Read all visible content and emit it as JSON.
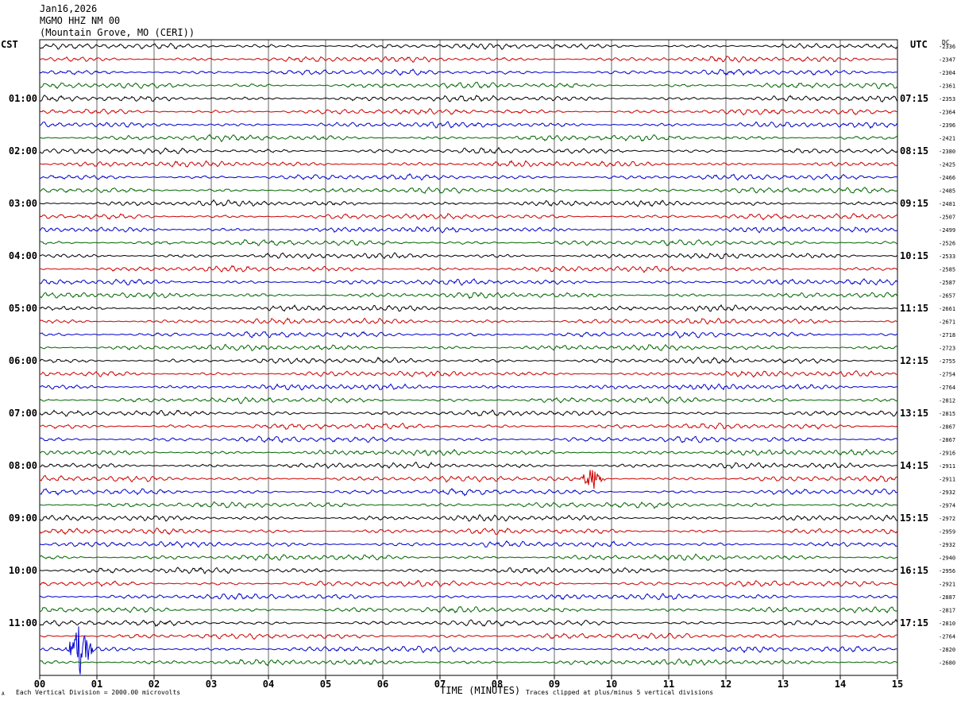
{
  "header": {
    "date": "Jan16,2026",
    "station": "MGMO HHZ NM 00",
    "location": "(Mountain Grove, MO (CERI))"
  },
  "left_timezone": "CST",
  "right_timezone": "UTC",
  "dc_label": "DC",
  "footer": {
    "scale": "Each Vertical Division = 2000.00 microvolts",
    "x_title": "TIME (MINUTES)",
    "clip_note": "Traces clipped at plus/minus 5 vertical divisions",
    "corner_mark": "A"
  },
  "colors": {
    "trace_cycle": [
      "#000000",
      "#cc0000",
      "#0000cc",
      "#006600"
    ],
    "grid": "#000000"
  },
  "chart_data": {
    "type": "line",
    "title": "",
    "xlabel": "TIME (MINUTES)",
    "ylabel": "",
    "xlim": [
      0,
      15
    ],
    "x_ticks": [
      "00",
      "01",
      "02",
      "03",
      "04",
      "05",
      "06",
      "07",
      "08",
      "09",
      "10",
      "11",
      "12",
      "13",
      "14",
      "15"
    ],
    "left_hour_labels": [
      "01:00",
      "02:00",
      "03:00",
      "04:00",
      "05:00",
      "06:00",
      "07:00",
      "08:00",
      "09:00",
      "10:00",
      "11:00"
    ],
    "right_hour_labels": [
      "07:15",
      "08:15",
      "09:15",
      "10:15",
      "11:15",
      "12:15",
      "13:15",
      "14:15",
      "15:15",
      "16:15",
      "17:15"
    ],
    "dc_offsets": [
      "-2336",
      "-2347",
      "-2304",
      "-2361",
      "-2353",
      "-2364",
      "-2396",
      "-2421",
      "-2380",
      "-2425",
      "-2466",
      "-2485",
      "-2481",
      "-2507",
      "-2499",
      "-2526",
      "-2533",
      "-2585",
      "-2587",
      "-2657",
      "-2661",
      "-2671",
      "-2718",
      "-2723",
      "-2755",
      "-2754",
      "-2764",
      "-2812",
      "-2815",
      "-2867",
      "-2867",
      "-2916",
      "-2911",
      "-2911",
      "-2932",
      "-2974",
      "-2972",
      "-2959",
      "-2932",
      "-2940",
      "-2956",
      "-2921",
      "-2887",
      "-2817",
      "-2810",
      "-2764",
      "-2820",
      "-2680"
    ],
    "events": [
      {
        "trace_index": 33,
        "minute_start": 9.45,
        "minute_end": 9.9,
        "amplitude_divisions": 0.9
      },
      {
        "trace_index": 46,
        "minute_start": 0.45,
        "minute_end": 0.95,
        "amplitude_divisions": 2.0
      }
    ],
    "trace_count": 48,
    "minutes_per_trace": 15,
    "grid": true
  }
}
